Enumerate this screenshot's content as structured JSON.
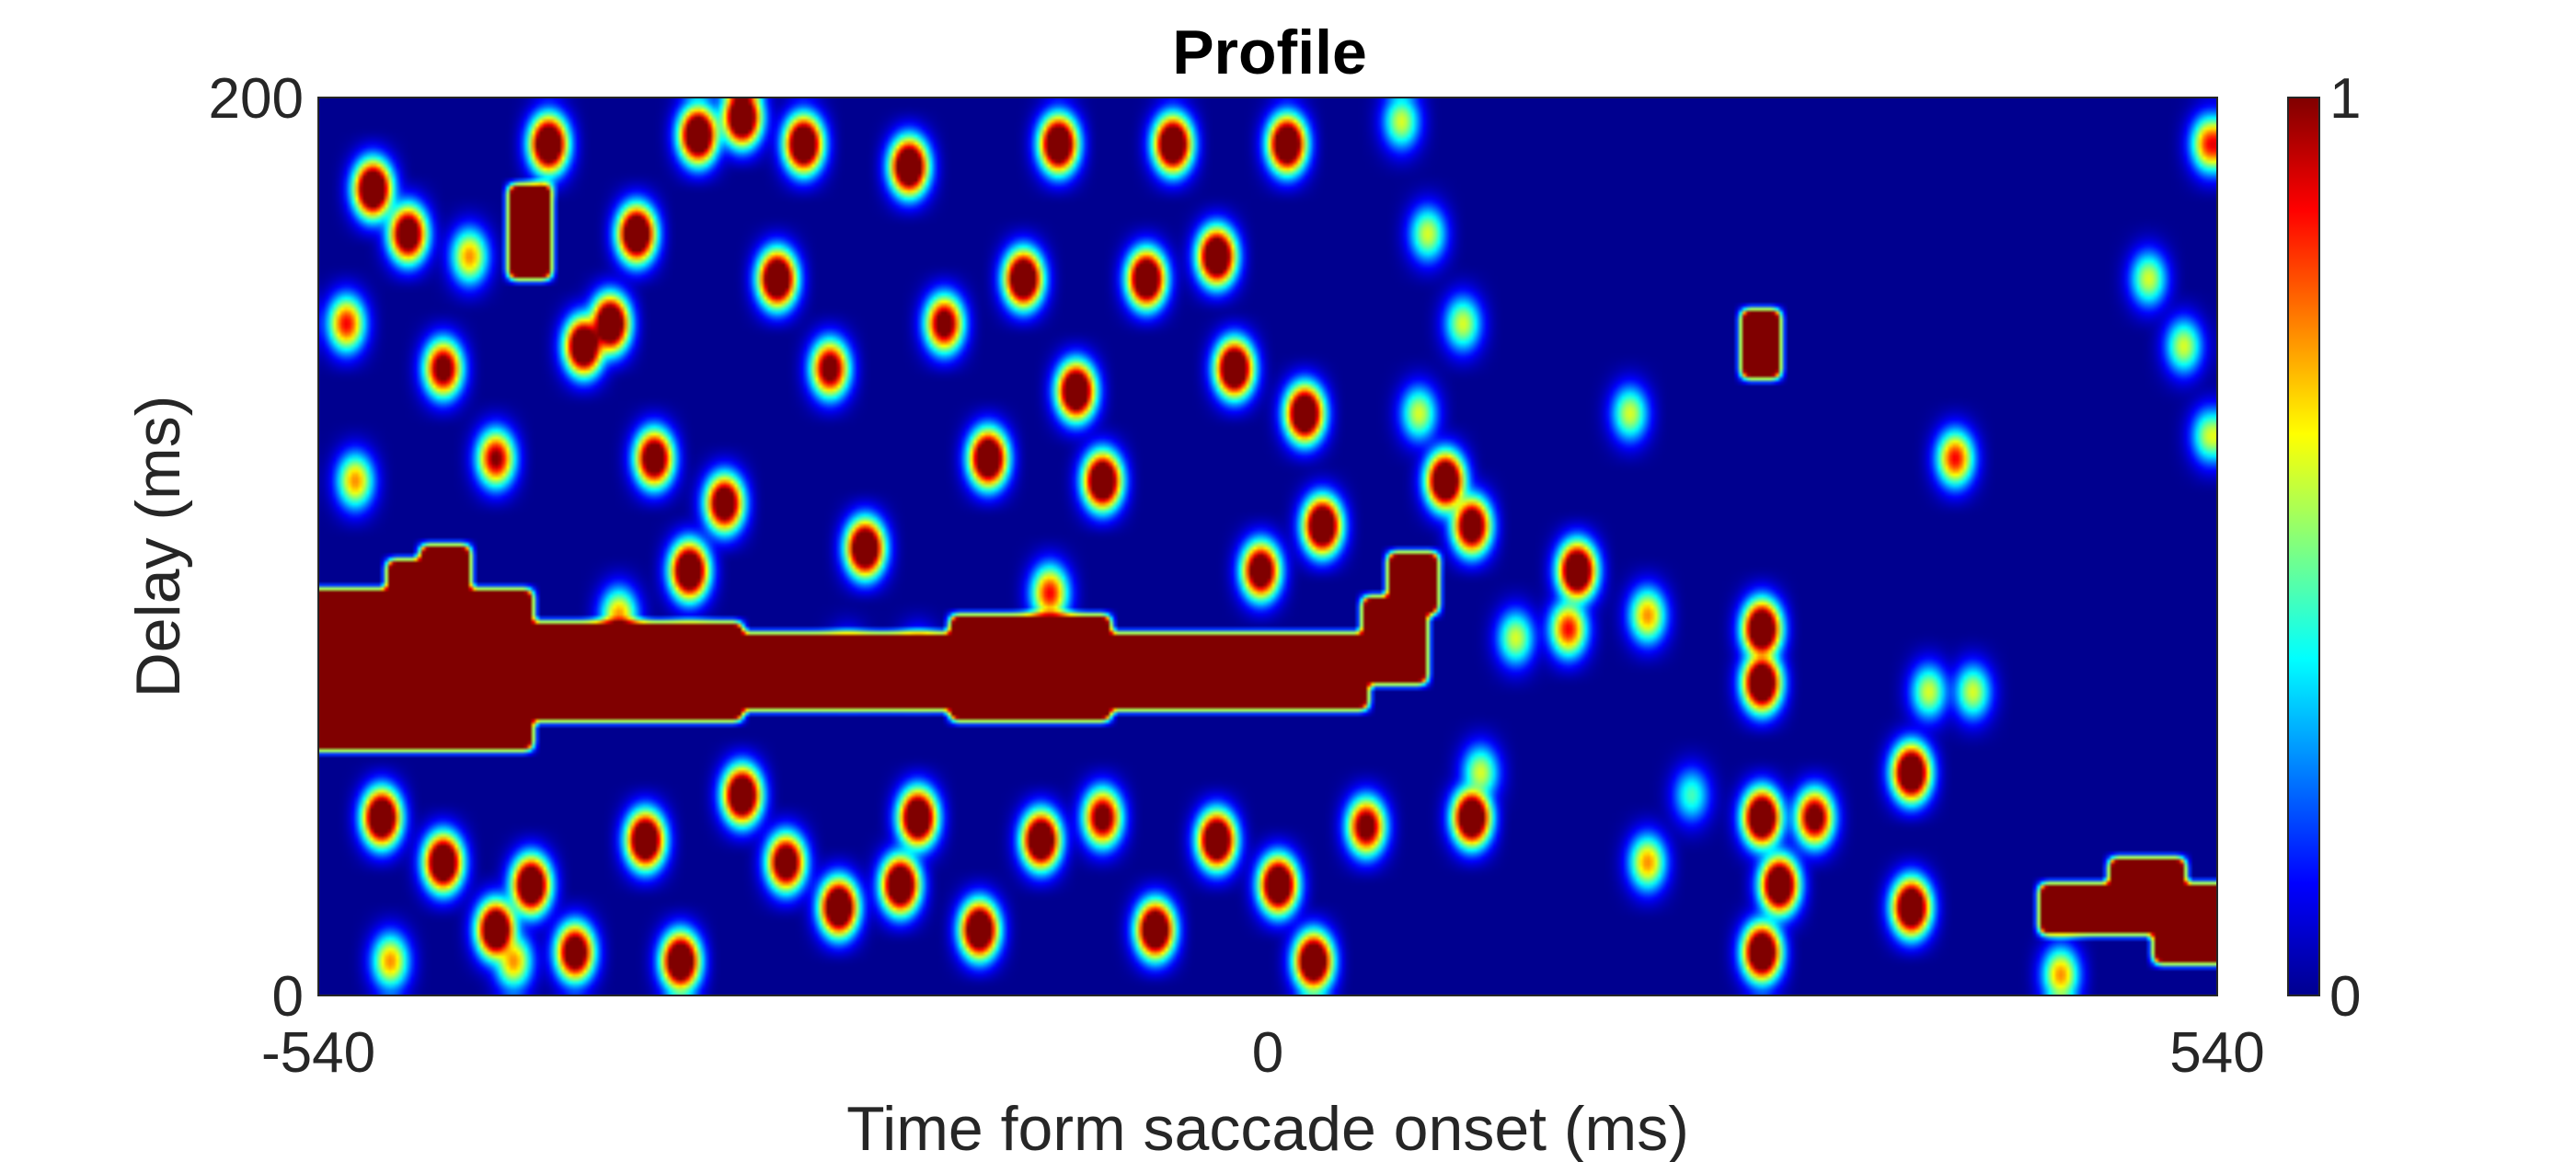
{
  "chart_data": {
    "type": "heatmap",
    "title": "Profile",
    "xlabel": "Time form saccade onset (ms)",
    "ylabel": "Delay (ms)",
    "xlim": [
      -540,
      540
    ],
    "ylim": [
      0,
      200
    ],
    "x_ticks": [
      "-540",
      "0",
      "540"
    ],
    "y_ticks": [
      "0",
      "200"
    ],
    "colorbar": {
      "colormap": "jet",
      "range": [
        0,
        1
      ],
      "ticks": [
        "0",
        "1"
      ]
    },
    "background_value": 0,
    "band": {
      "description_value": 1,
      "x_range": [
        -540,
        60
      ],
      "delay_range": [
        50,
        100
      ]
    },
    "colors": {
      "low": "#00008F",
      "high": "#800000"
    },
    "rects": [
      {
        "x0": -540,
        "x1": -300,
        "y0": 62,
        "y1": 82,
        "v": 1
      },
      {
        "x0": -540,
        "x1": -420,
        "y0": 55,
        "y1": 90,
        "v": 1
      },
      {
        "x0": -500,
        "x1": -470,
        "y0": 82,
        "y1": 96,
        "v": 1
      },
      {
        "x0": -300,
        "x1": 55,
        "y0": 64,
        "y1": 80,
        "v": 1
      },
      {
        "x0": -180,
        "x1": -90,
        "y0": 62,
        "y1": 84,
        "v": 1
      },
      {
        "x0": 55,
        "x1": 90,
        "y0": 70,
        "y1": 88,
        "v": 1
      },
      {
        "x0": 70,
        "x1": 95,
        "y0": 86,
        "y1": 98,
        "v": 1
      },
      {
        "x0": 270,
        "x1": 290,
        "y0": 138,
        "y1": 152,
        "v": 1
      },
      {
        "x0": 480,
        "x1": 520,
        "y0": 22,
        "y1": 30,
        "v": 1
      },
      {
        "x0": 440,
        "x1": 540,
        "y0": 14,
        "y1": 24,
        "v": 1
      },
      {
        "x0": 505,
        "x1": 540,
        "y0": 8,
        "y1": 18,
        "v": 1
      },
      {
        "x0": -430,
        "x1": -410,
        "y0": 160,
        "y1": 180,
        "v": 1
      },
      {
        "x0": -480,
        "x1": -455,
        "y0": 88,
        "y1": 100,
        "v": 1
      }
    ],
    "blobs": [
      {
        "x": -510,
        "y": 180,
        "v": 1
      },
      {
        "x": -490,
        "y": 170,
        "v": 0.9
      },
      {
        "x": -525,
        "y": 150,
        "v": 0.6
      },
      {
        "x": -470,
        "y": 140,
        "v": 0.8
      },
      {
        "x": -440,
        "y": 120,
        "v": 0.7
      },
      {
        "x": -410,
        "y": 190,
        "v": 1
      },
      {
        "x": -390,
        "y": 145,
        "v": 1
      },
      {
        "x": -375,
        "y": 150,
        "v": 1
      },
      {
        "x": -350,
        "y": 120,
        "v": 0.9
      },
      {
        "x": -360,
        "y": 170,
        "v": 1
      },
      {
        "x": -325,
        "y": 192,
        "v": 1
      },
      {
        "x": -300,
        "y": 196,
        "v": 1
      },
      {
        "x": -330,
        "y": 95,
        "v": 1
      },
      {
        "x": -310,
        "y": 110,
        "v": 0.9
      },
      {
        "x": -280,
        "y": 160,
        "v": 1
      },
      {
        "x": -265,
        "y": 190,
        "v": 1
      },
      {
        "x": -250,
        "y": 140,
        "v": 0.8
      },
      {
        "x": -230,
        "y": 100,
        "v": 1
      },
      {
        "x": -205,
        "y": 185,
        "v": 1
      },
      {
        "x": -185,
        "y": 150,
        "v": 0.8
      },
      {
        "x": -160,
        "y": 120,
        "v": 1
      },
      {
        "x": -140,
        "y": 160,
        "v": 1
      },
      {
        "x": -120,
        "y": 190,
        "v": 1
      },
      {
        "x": -110,
        "y": 135,
        "v": 1
      },
      {
        "x": -95,
        "y": 115,
        "v": 1
      },
      {
        "x": -70,
        "y": 160,
        "v": 1
      },
      {
        "x": -55,
        "y": 190,
        "v": 1
      },
      {
        "x": -30,
        "y": 165,
        "v": 1
      },
      {
        "x": -20,
        "y": 140,
        "v": 1
      },
      {
        "x": 10,
        "y": 190,
        "v": 1
      },
      {
        "x": 20,
        "y": 130,
        "v": 1
      },
      {
        "x": -5,
        "y": 95,
        "v": 0.9
      },
      {
        "x": 30,
        "y": 105,
        "v": 1
      },
      {
        "x": 100,
        "y": 115,
        "v": 1
      },
      {
        "x": 115,
        "y": 105,
        "v": 0.9
      },
      {
        "x": 175,
        "y": 95,
        "v": 1
      },
      {
        "x": 170,
        "y": 82,
        "v": 0.6
      },
      {
        "x": -505,
        "y": 40,
        "v": 1
      },
      {
        "x": -470,
        "y": 30,
        "v": 1
      },
      {
        "x": -440,
        "y": 15,
        "v": 1
      },
      {
        "x": -420,
        "y": 25,
        "v": 1
      },
      {
        "x": -395,
        "y": 10,
        "v": 0.9
      },
      {
        "x": -355,
        "y": 35,
        "v": 1
      },
      {
        "x": -335,
        "y": 8,
        "v": 1
      },
      {
        "x": -300,
        "y": 45,
        "v": 1
      },
      {
        "x": -275,
        "y": 30,
        "v": 0.9
      },
      {
        "x": -245,
        "y": 20,
        "v": 1
      },
      {
        "x": -210,
        "y": 25,
        "v": 1
      },
      {
        "x": -200,
        "y": 40,
        "v": 1
      },
      {
        "x": -165,
        "y": 15,
        "v": 1
      },
      {
        "x": -130,
        "y": 35,
        "v": 1
      },
      {
        "x": -95,
        "y": 40,
        "v": 0.8
      },
      {
        "x": -65,
        "y": 15,
        "v": 1
      },
      {
        "x": -30,
        "y": 35,
        "v": 1
      },
      {
        "x": 5,
        "y": 25,
        "v": 1
      },
      {
        "x": 25,
        "y": 8,
        "v": 1
      },
      {
        "x": 55,
        "y": 38,
        "v": 0.8
      },
      {
        "x": 115,
        "y": 40,
        "v": 1
      },
      {
        "x": 280,
        "y": 40,
        "v": 1
      },
      {
        "x": 290,
        "y": 25,
        "v": 1
      },
      {
        "x": 280,
        "y": 10,
        "v": 1
      },
      {
        "x": 310,
        "y": 40,
        "v": 0.8
      },
      {
        "x": 365,
        "y": 20,
        "v": 1
      },
      {
        "x": 365,
        "y": 50,
        "v": 1
      },
      {
        "x": 280,
        "y": 70,
        "v": 1
      },
      {
        "x": 280,
        "y": 82,
        "v": 1
      },
      {
        "x": 215,
        "y": 85,
        "v": 0.5
      },
      {
        "x": 215,
        "y": 30,
        "v": 0.5
      },
      {
        "x": 390,
        "y": 120,
        "v": 0.6
      },
      {
        "x": 205,
        "y": 130,
        "v": 0.4
      },
      {
        "x": 110,
        "y": 150,
        "v": 0.4
      },
      {
        "x": 85,
        "y": 130,
        "v": 0.4
      },
      {
        "x": 75,
        "y": 195,
        "v": 0.4
      },
      {
        "x": 90,
        "y": 170,
        "v": 0.4
      },
      {
        "x": 500,
        "y": 160,
        "v": 0.4
      },
      {
        "x": 520,
        "y": 145,
        "v": 0.4
      },
      {
        "x": 535,
        "y": 125,
        "v": 0.4
      },
      {
        "x": 535,
        "y": 190,
        "v": 0.6
      },
      {
        "x": 400,
        "y": 68,
        "v": 0.4
      },
      {
        "x": 375,
        "y": 68,
        "v": 0.4
      },
      {
        "x": 120,
        "y": 50,
        "v": 0.4
      },
      {
        "x": 140,
        "y": 80,
        "v": 0.4
      },
      {
        "x": -520,
        "y": 115,
        "v": 0.5
      },
      {
        "x": -455,
        "y": 165,
        "v": 0.5
      },
      {
        "x": -370,
        "y": 85,
        "v": 0.5
      },
      {
        "x": -240,
        "y": 75,
        "v": 0.3
      },
      {
        "x": -125,
        "y": 90,
        "v": 0.6
      },
      {
        "x": -200,
        "y": 75,
        "v": 0.4
      },
      {
        "x": -430,
        "y": 8,
        "v": 0.5
      },
      {
        "x": -500,
        "y": 8,
        "v": 0.5
      },
      {
        "x": 240,
        "y": 45,
        "v": 0.3
      },
      {
        "x": 450,
        "y": 5,
        "v": 0.5
      }
    ]
  }
}
